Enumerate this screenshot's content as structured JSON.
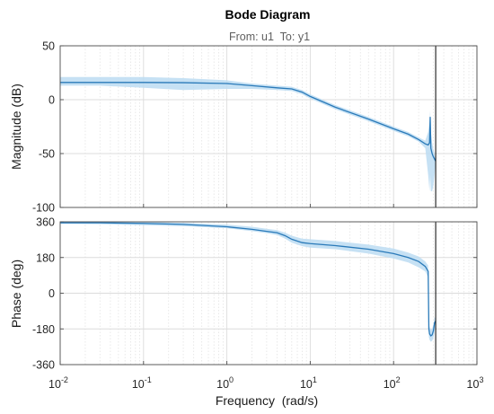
{
  "chart_data": {
    "type": "line",
    "title": "Bode Diagram",
    "subtitle": "From: u1  To: y1",
    "xlabel": "Frequency  (rad/s)",
    "x_scale": "log",
    "xlim": [
      0.01,
      1000
    ],
    "x_ticks": [
      {
        "base": "10",
        "exp": "-2"
      },
      {
        "base": "10",
        "exp": "-1"
      },
      {
        "base": "10",
        "exp": "0"
      },
      {
        "base": "10",
        "exp": "1"
      },
      {
        "base": "10",
        "exp": "2"
      },
      {
        "base": "10",
        "exp": "3"
      }
    ],
    "grid": true,
    "vertical_marker_x": 320,
    "colors": {
      "line": "#2a7ab9",
      "band": "#bcdcf2",
      "marker": "#000000",
      "grid": "#dcdcdc",
      "axis": "#4d4d4d"
    },
    "panels": [
      {
        "ylabel": "Magnitude (dB)",
        "ylim": [
          -100,
          50
        ],
        "ytick_values": [
          -100,
          -50,
          0,
          50
        ],
        "ytick_labels": [
          "-100",
          "-50",
          "0",
          "50"
        ],
        "series": {
          "x": [
            0.01,
            0.03,
            0.1,
            0.3,
            1,
            2,
            4,
            6,
            8,
            10,
            20,
            50,
            100,
            150,
            200,
            240,
            260,
            270,
            275,
            280,
            290,
            300,
            310,
            320
          ],
          "mean": [
            16,
            16,
            16,
            15.8,
            15,
            13,
            11,
            10,
            7,
            3,
            -7,
            -18,
            -27,
            -32,
            -37,
            -41,
            -42,
            -40,
            -16,
            -45,
            -50,
            -53,
            -55,
            -57
          ],
          "lower": [
            13,
            13,
            11,
            9,
            10,
            10,
            9,
            8,
            5,
            1,
            -9,
            -20,
            -29,
            -34,
            -39,
            -45,
            -70,
            -85,
            -70,
            -85,
            -85,
            -80,
            -70,
            -58
          ],
          "upper": [
            21,
            21,
            21,
            20,
            18,
            15,
            13,
            12,
            9,
            5,
            -5,
            -16,
            -25,
            -30,
            -35,
            -38,
            -30,
            -20,
            -10,
            -30,
            -40,
            -46,
            -50,
            -56
          ]
        }
      },
      {
        "ylabel": "Phase (deg)",
        "ylim": [
          -360,
          360
        ],
        "ytick_values": [
          -360,
          -180,
          0,
          180,
          360
        ],
        "ytick_labels": [
          "-360",
          "-180",
          "0",
          "180",
          "360"
        ],
        "series": {
          "x": [
            0.01,
            0.03,
            0.1,
            0.3,
            1,
            2,
            3,
            4,
            5,
            6,
            8,
            10,
            20,
            50,
            100,
            150,
            200,
            240,
            260,
            265,
            270,
            280,
            290,
            300,
            310,
            320
          ],
          "mean": [
            355,
            355,
            352,
            347,
            335,
            322,
            312,
            305,
            290,
            272,
            255,
            250,
            240,
            222,
            200,
            180,
            160,
            135,
            110,
            -180,
            -205,
            -215,
            -210,
            -190,
            -150,
            -140
          ],
          "lower": [
            350,
            348,
            343,
            338,
            328,
            313,
            303,
            293,
            275,
            255,
            237,
            230,
            222,
            200,
            175,
            155,
            130,
            110,
            80,
            -220,
            -235,
            -245,
            -240,
            -225,
            -200,
            -150
          ],
          "upper": [
            362,
            362,
            360,
            355,
            346,
            335,
            325,
            318,
            305,
            290,
            275,
            272,
            263,
            245,
            225,
            205,
            185,
            160,
            140,
            -150,
            -170,
            -185,
            -180,
            -160,
            -120,
            -130
          ]
        }
      }
    ]
  }
}
